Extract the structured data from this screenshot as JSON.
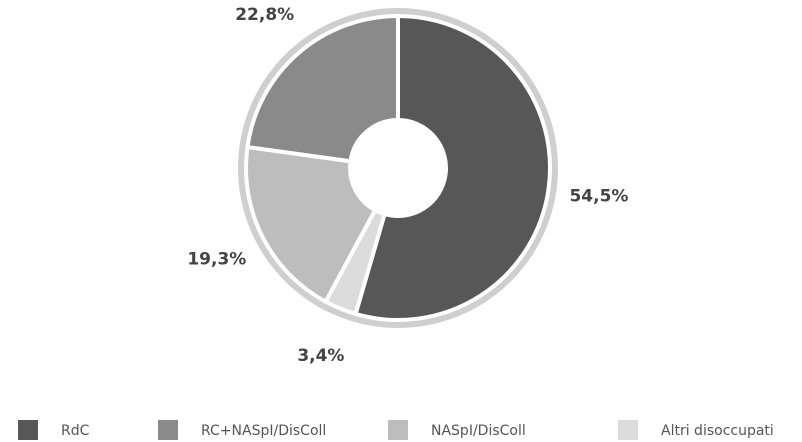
{
  "chart_data": {
    "type": "donut",
    "categories": [
      "RdC",
      "RC+NASpI/DisColl",
      "NASpI/DisColl",
      "Altri disoccupati"
    ],
    "values": [
      54.5,
      22.8,
      19.3,
      3.4
    ],
    "value_labels": [
      "54,5%",
      "22,8%",
      "19,3%",
      "3,4%"
    ],
    "colors": [
      "#575757",
      "#8a8a8a",
      "#bdbdbd",
      "#dcdcdc"
    ],
    "legend": "bottom"
  }
}
